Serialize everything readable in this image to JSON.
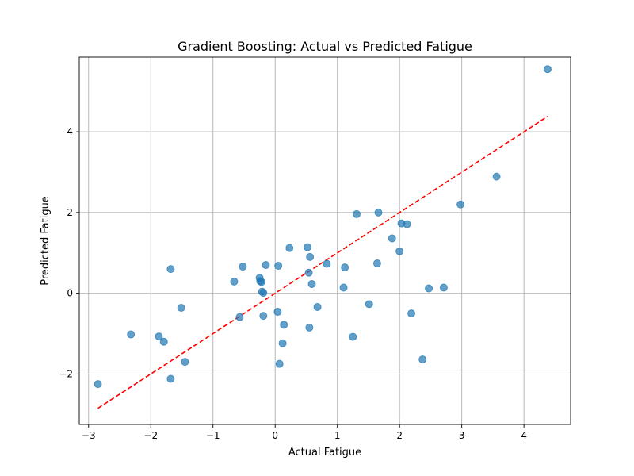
{
  "chart_data": {
    "type": "scatter",
    "title": "Gradient Boosting: Actual vs Predicted Fatigue",
    "xlabel": "Actual Fatigue",
    "ylabel": "Predicted Fatigue",
    "xlim": [
      -3.15,
      4.75
    ],
    "ylim": [
      -3.25,
      5.85
    ],
    "grid": true,
    "x_ticks": [
      -3,
      -2,
      -1,
      0,
      1,
      2,
      3,
      4
    ],
    "y_ticks": [
      -2,
      0,
      2,
      4
    ],
    "x_tick_labels": [
      "−3",
      "−2",
      "−1",
      "0",
      "1",
      "2",
      "3",
      "4"
    ],
    "y_tick_labels": [
      "−2",
      "0",
      "2",
      "4"
    ],
    "colors": {
      "points": "#1f77b4",
      "reference_line": "#ff0000"
    },
    "reference_line": {
      "x": [
        -2.85,
        4.38
      ],
      "y": [
        -2.85,
        4.38
      ],
      "style": "dashed"
    },
    "points": [
      {
        "x": -2.85,
        "y": -2.25
      },
      {
        "x": -2.32,
        "y": -1.02
      },
      {
        "x": -1.87,
        "y": -1.07
      },
      {
        "x": -1.79,
        "y": -1.2
      },
      {
        "x": -1.68,
        "y": 0.6
      },
      {
        "x": -1.68,
        "y": -2.12
      },
      {
        "x": -1.51,
        "y": -0.36
      },
      {
        "x": -1.45,
        "y": -1.7
      },
      {
        "x": -0.66,
        "y": 0.29
      },
      {
        "x": -0.57,
        "y": -0.59
      },
      {
        "x": -0.52,
        "y": 0.66
      },
      {
        "x": -0.25,
        "y": 0.38
      },
      {
        "x": -0.24,
        "y": 0.3
      },
      {
        "x": -0.22,
        "y": 0.28
      },
      {
        "x": -0.21,
        "y": 0.04
      },
      {
        "x": -0.19,
        "y": 0.01
      },
      {
        "x": -0.19,
        "y": -0.56
      },
      {
        "x": -0.15,
        "y": 0.7
      },
      {
        "x": 0.04,
        "y": -0.46
      },
      {
        "x": 0.05,
        "y": 0.68
      },
      {
        "x": 0.07,
        "y": -1.75
      },
      {
        "x": 0.12,
        "y": -1.24
      },
      {
        "x": 0.14,
        "y": -0.78
      },
      {
        "x": 0.23,
        "y": 1.12
      },
      {
        "x": 0.52,
        "y": 1.14
      },
      {
        "x": 0.54,
        "y": 0.51
      },
      {
        "x": 0.55,
        "y": -0.85
      },
      {
        "x": 0.56,
        "y": 0.9
      },
      {
        "x": 0.59,
        "y": 0.23
      },
      {
        "x": 0.68,
        "y": -0.34
      },
      {
        "x": 0.83,
        "y": 0.73
      },
      {
        "x": 1.1,
        "y": 0.14
      },
      {
        "x": 1.12,
        "y": 0.64
      },
      {
        "x": 1.25,
        "y": -1.08
      },
      {
        "x": 1.31,
        "y": 1.96
      },
      {
        "x": 1.51,
        "y": -0.27
      },
      {
        "x": 1.64,
        "y": 0.74
      },
      {
        "x": 1.66,
        "y": 2.0
      },
      {
        "x": 1.88,
        "y": 1.36
      },
      {
        "x": 2.0,
        "y": 1.04
      },
      {
        "x": 2.03,
        "y": 1.73
      },
      {
        "x": 2.12,
        "y": 1.71
      },
      {
        "x": 2.19,
        "y": -0.5
      },
      {
        "x": 2.37,
        "y": -1.64
      },
      {
        "x": 2.47,
        "y": 0.12
      },
      {
        "x": 2.71,
        "y": 0.14
      },
      {
        "x": 2.98,
        "y": 2.2
      },
      {
        "x": 3.56,
        "y": 2.89
      },
      {
        "x": 4.38,
        "y": 5.55
      }
    ]
  }
}
